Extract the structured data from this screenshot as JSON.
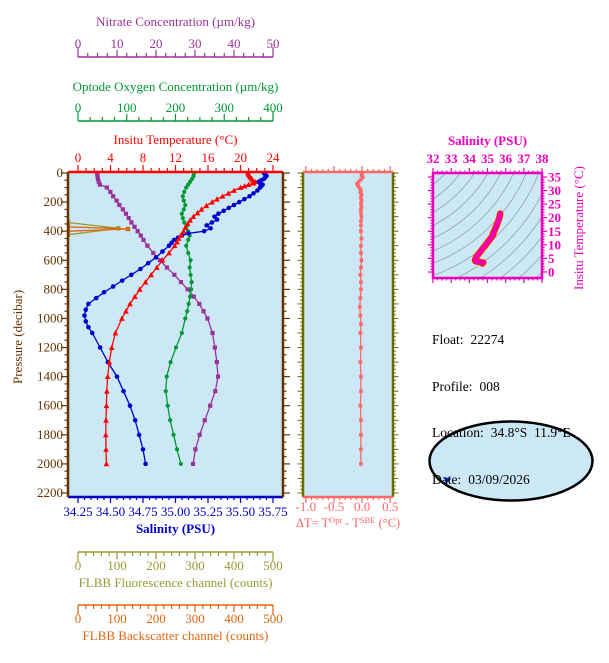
{
  "colors": {
    "page_bg": "#FFFFFF",
    "plot_bg": "#CCE8F5",
    "nitrate": "#993399",
    "oxygen": "#009933",
    "temperature": "#FF0000",
    "salinity": "#0000CC",
    "pressure": "#663300",
    "delta": "#FF6666",
    "delta_side_border": "#6B6B00",
    "fluorescence": "#999933",
    "backscatter": "#DD6611",
    "ts_magenta": "#EE00BB",
    "ts_curve_edge": "#FF2200",
    "contour_gray": "#90A0B0",
    "map_land": "#F5BDBD",
    "map_outline": "#000000",
    "float_marker": "#0022EE",
    "info_text": "#000000"
  },
  "axes": {
    "nitrate": {
      "title": "Nitrate Concentration (µm/kg)",
      "min": 0,
      "max": 50,
      "major_ticks": [
        0,
        10,
        20,
        30,
        40,
        50
      ],
      "minor_step": 2.5
    },
    "oxygen": {
      "title": "Optode Oxygen Concentration (µm/kg)",
      "min": 0,
      "max": 400,
      "major_ticks": [
        0,
        100,
        200,
        300,
        400
      ],
      "minor_step": 25
    },
    "temperature": {
      "title": "Insitu Temperature (°C)",
      "min": 0,
      "max": 24,
      "major_ticks": [
        0,
        4,
        8,
        12,
        16,
        20,
        24
      ],
      "minor_step": 1
    },
    "salinity": {
      "title": "Salinity (PSU)",
      "min": 34.25,
      "max": 35.75,
      "major_ticks": [
        34.25,
        34.5,
        34.75,
        35,
        35.25,
        35.5,
        35.75
      ],
      "tick_labels": [
        "34.25",
        "34.50",
        "34.75",
        "35.00",
        "35.25",
        "35.50",
        "35.75"
      ],
      "minor_step": 0.05
    },
    "pressure": {
      "title": "Pressure (decibar)",
      "min": 0,
      "max": 2200,
      "major_ticks": [
        0,
        200,
        400,
        600,
        800,
        1000,
        1200,
        1400,
        1600,
        1800,
        2000,
        2200
      ],
      "minor_step": 50
    },
    "fluorescence": {
      "title": "FLBB Fluorescence channel (counts)",
      "min": 0,
      "max": 500,
      "major_ticks": [
        0,
        100,
        200,
        300,
        400,
        500
      ],
      "minor_step": 20
    },
    "backscatter": {
      "title": "FLBB Backscatter channel (counts)",
      "min": 0,
      "max": 500,
      "major_ticks": [
        0,
        100,
        200,
        300,
        400,
        500
      ],
      "minor_step": 20
    },
    "delta": {
      "title_pre": "ΔT= T",
      "title_sup1": "Opt",
      "title_mid": " - T",
      "title_sup2": "SBE",
      "title_post": " (°C)",
      "min": -1.05,
      "max": 0.55,
      "major_ticks": [
        -1,
        -0.5,
        0,
        0.5
      ],
      "tick_labels": [
        "-1.0",
        "-0.5",
        "0.0",
        "0.5"
      ],
      "minor_step": 0.1
    },
    "ts_salinity": {
      "title": "Salinity (PSU)",
      "min": 32,
      "max": 38,
      "major_ticks": [
        32,
        33,
        34,
        35,
        36,
        37,
        38
      ],
      "minor_step": 0.25
    },
    "ts_temperature": {
      "title": "Insitu Temperature (°C)",
      "min": 0,
      "max": 35,
      "major_ticks": [
        0,
        5,
        10,
        15,
        20,
        25,
        30,
        35
      ],
      "minor_step": 1
    }
  },
  "info": {
    "lines": [
      {
        "label": "Float:",
        "value": "22274"
      },
      {
        "label": "Profile:",
        "value": "008"
      },
      {
        "label": "Location:",
        "value": "34.8°S  11.9°E"
      },
      {
        "label": "Date:",
        "value": "03/09/2026"
      }
    ]
  },
  "chart_data": [
    {
      "id": "main-profiles",
      "type": "line",
      "ylabel": "Pressure (decibar)",
      "ylim": [
        0,
        2200
      ],
      "legend": "none",
      "grid": false,
      "series": [
        {
          "name": "Insitu Temperature (°C)",
          "axis": "temperature",
          "marker": "triangle",
          "pressure": [
            0,
            10,
            20,
            30,
            40,
            50,
            60,
            70,
            80,
            90,
            100,
            120,
            140,
            160,
            180,
            200,
            225,
            250,
            275,
            300,
            325,
            350,
            375,
            400,
            425,
            450,
            475,
            500,
            550,
            600,
            650,
            700,
            750,
            800,
            850,
            900,
            950,
            1000,
            1100,
            1200,
            1300,
            1400,
            1500,
            1600,
            1700,
            1800,
            1900,
            2000
          ],
          "values": [
            20.9,
            21.0,
            21.1,
            21.2,
            21.4,
            21.5,
            21.8,
            21.6,
            21.0,
            20.5,
            20.0,
            19.2,
            18.5,
            17.8,
            17.1,
            16.5,
            15.8,
            15.2,
            14.7,
            14.2,
            13.8,
            13.5,
            13.2,
            13.0,
            12.7,
            12.4,
            12.2,
            11.9,
            11.2,
            10.4,
            9.7,
            9.0,
            8.3,
            7.6,
            7.0,
            6.4,
            5.9,
            5.4,
            4.6,
            4.15,
            3.85,
            3.65,
            3.55,
            3.5,
            3.45,
            3.42,
            3.45,
            3.5
          ]
        },
        {
          "name": "Salinity (PSU)",
          "axis": "salinity",
          "marker": "circle",
          "pressure": [
            0,
            10,
            20,
            30,
            40,
            50,
            60,
            70,
            80,
            90,
            100,
            120,
            140,
            160,
            180,
            200,
            220,
            240,
            260,
            280,
            300,
            320,
            340,
            360,
            380,
            400,
            415,
            430,
            445,
            460,
            480,
            500,
            540,
            580,
            620,
            660,
            700,
            740,
            780,
            820,
            860,
            900,
            940,
            980,
            1020,
            1060,
            1100,
            1200,
            1300,
            1400,
            1500,
            1600,
            1700,
            1800,
            1900,
            2000
          ],
          "values": [
            35.68,
            35.69,
            35.7,
            35.69,
            35.68,
            35.66,
            35.64,
            35.65,
            35.67,
            35.66,
            35.65,
            35.63,
            35.6,
            35.57,
            35.53,
            35.49,
            35.45,
            35.41,
            35.37,
            35.33,
            35.3,
            35.32,
            35.28,
            35.24,
            35.27,
            35.22,
            35.1,
            35.05,
            35.02,
            34.99,
            34.97,
            34.95,
            34.9,
            34.85,
            34.79,
            34.73,
            34.66,
            34.59,
            34.52,
            34.45,
            34.39,
            34.33,
            34.31,
            34.3,
            34.31,
            34.33,
            34.36,
            34.42,
            34.48,
            34.55,
            34.6,
            34.65,
            34.69,
            34.72,
            34.75,
            34.77
          ]
        },
        {
          "name": "Optode Oxygen Concentration (µm/kg)",
          "axis": "oxygen",
          "marker": "circle",
          "pressure": [
            0,
            20,
            40,
            60,
            80,
            100,
            130,
            160,
            190,
            220,
            250,
            280,
            310,
            340,
            370,
            400,
            430,
            460,
            500,
            550,
            600,
            650,
            700,
            750,
            800,
            850,
            900,
            950,
            1000,
            1100,
            1200,
            1300,
            1400,
            1500,
            1600,
            1700,
            1800,
            1900,
            2000
          ],
          "values": [
            238,
            237,
            234,
            230,
            226,
            222,
            218,
            215,
            217,
            220,
            217,
            213,
            215,
            218,
            222,
            226,
            229,
            226,
            222,
            226,
            231,
            229,
            231,
            233,
            232,
            230,
            227,
            224,
            220,
            213,
            201,
            190,
            182,
            180,
            184,
            189,
            196,
            203,
            211
          ]
        },
        {
          "name": "Nitrate Concentration (µm/kg)",
          "axis": "nitrate",
          "marker": "square",
          "pressure": [
            0,
            20,
            40,
            60,
            80,
            100,
            130,
            160,
            190,
            220,
            250,
            280,
            310,
            340,
            370,
            400,
            430,
            460,
            500,
            550,
            600,
            650,
            700,
            750,
            800,
            850,
            900,
            950,
            1000,
            1100,
            1200,
            1300,
            1400,
            1500,
            1600,
            1700,
            1800,
            1900,
            2000
          ],
          "values": [
            4.9,
            5.0,
            5.1,
            5.3,
            5.6,
            7.4,
            8.3,
            9.0,
            9.9,
            10.6,
            11.5,
            12.3,
            13.0,
            13.7,
            14.5,
            15.3,
            16.1,
            16.8,
            17.8,
            19.3,
            21.0,
            22.8,
            24.7,
            26.4,
            28.1,
            29.7,
            31.1,
            32.2,
            33.2,
            34.5,
            35.1,
            35.6,
            35.9,
            35.2,
            33.9,
            32.5,
            31.2,
            30.1,
            29.5
          ]
        },
        {
          "name": "FLBB Fluorescence channel (counts)",
          "axis": "fluorescence",
          "marker": "square",
          "pressure": [
            340,
            380,
            425
          ],
          "values": [
            -26,
            103,
            -26
          ]
        },
        {
          "name": "FLBB Backscatter channel (counts)",
          "axis": "backscatter",
          "marker": "square",
          "pressure": [
            370,
            385,
            400
          ],
          "values": [
            -26,
            128,
            -26
          ]
        }
      ]
    },
    {
      "id": "delta-t",
      "type": "line",
      "xlabel": "ΔT= TOpt - TSBE (°C)",
      "xlim": [
        -1.05,
        0.55
      ],
      "ylim": [
        0,
        2200
      ],
      "series": [
        {
          "name": "Temperature difference",
          "axis": "delta",
          "marker": "square",
          "pressure": [
            0,
            15,
            30,
            45,
            60,
            75,
            90,
            105,
            120,
            135,
            150,
            170,
            190,
            210,
            230,
            250,
            275,
            300,
            330,
            360,
            400,
            450,
            500,
            550,
            600,
            650,
            700,
            750,
            800,
            860,
            920,
            980,
            1040,
            1100,
            1200,
            1300,
            1400,
            1500,
            1600,
            1700,
            1800,
            1900,
            2000
          ],
          "values": [
            0.0,
            -0.01,
            0.01,
            -0.02,
            -0.06,
            -0.09,
            -0.07,
            -0.04,
            -0.02,
            -0.03,
            -0.01,
            -0.02,
            -0.01,
            -0.02,
            -0.01,
            -0.02,
            -0.02,
            -0.01,
            -0.02,
            -0.02,
            -0.02,
            -0.01,
            -0.02,
            -0.02,
            -0.01,
            -0.02,
            -0.03,
            -0.02,
            -0.02,
            -0.03,
            -0.04,
            -0.03,
            -0.02,
            -0.03,
            -0.02,
            -0.03,
            -0.02,
            -0.02,
            -0.03,
            -0.02,
            -0.02,
            -0.02,
            -0.02
          ]
        }
      ]
    },
    {
      "id": "ts-diagram",
      "type": "line",
      "xlabel": "Salinity (PSU)",
      "ylabel": "Insitu Temperature (°C)",
      "xlim": [
        32,
        38
      ],
      "ylim": [
        0,
        35
      ],
      "series": [
        {
          "name": "T-S curve",
          "color_key": "ts_magenta",
          "salinity": [
            35.68,
            35.7,
            35.66,
            35.6,
            35.55,
            35.49,
            35.42,
            35.36,
            35.3,
            35.32,
            35.27,
            35.2,
            35.1,
            34.99,
            34.88,
            34.76,
            34.64,
            34.52,
            34.42,
            34.36,
            34.33,
            34.31,
            34.33,
            34.39,
            34.46,
            34.54,
            34.62,
            34.69,
            34.75,
            34.77,
            34.72
          ],
          "temperature": [
            21.0,
            21.5,
            20.2,
            19.0,
            18.0,
            16.9,
            15.8,
            14.9,
            14.2,
            13.8,
            13.3,
            12.6,
            11.7,
            10.8,
            9.8,
            8.8,
            7.8,
            6.8,
            5.9,
            5.3,
            4.7,
            4.3,
            4.0,
            3.9,
            3.8,
            3.7,
            3.6,
            3.55,
            3.5,
            3.45,
            3.1
          ]
        }
      ]
    }
  ]
}
